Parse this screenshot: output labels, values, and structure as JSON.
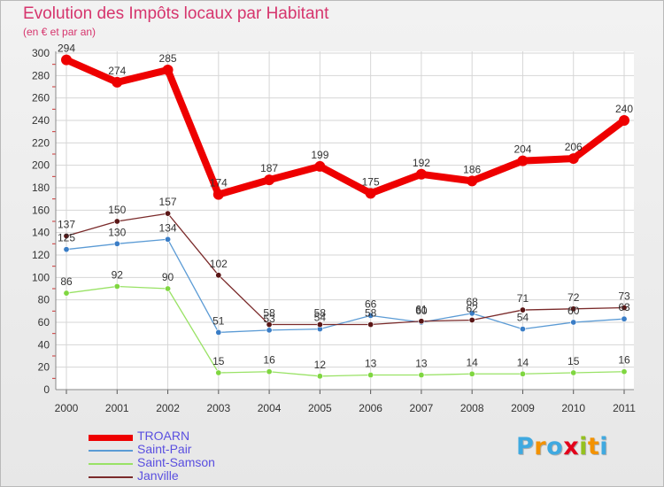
{
  "header": {
    "title": "Evolution des Impôts locaux par Habitant",
    "subtitle": "(en € et par an)"
  },
  "brand": {
    "text": "Proxiti",
    "letters": [
      "P",
      "r",
      "o",
      "x",
      "i",
      "t",
      "i"
    ],
    "colors": [
      "#3fa9e0",
      "#f39200",
      "#3fa9e0",
      "#e3001b",
      "#95c11f",
      "#f39200",
      "#3fa9e0"
    ]
  },
  "chart_data": {
    "type": "line",
    "title": "Evolution des Impôts locaux par Habitant",
    "subtitle": "(en € et par an)",
    "xlabel": "",
    "ylabel": "",
    "ylim": [
      0,
      300
    ],
    "yticks": [
      0,
      20,
      40,
      60,
      80,
      100,
      120,
      140,
      160,
      180,
      200,
      220,
      240,
      260,
      280,
      300
    ],
    "grid": true,
    "legend_position": "bottom-left",
    "categories": [
      "2000",
      "2001",
      "2002",
      "2003",
      "2004",
      "2005",
      "2006",
      "2007",
      "2008",
      "2009",
      "2010",
      "2011"
    ],
    "series": [
      {
        "name": "TROARN",
        "color": "#ee0000",
        "values": [
          294,
          274,
          285,
          174,
          187,
          199,
          175,
          192,
          186,
          204,
          206,
          240
        ],
        "labels": [
          "294",
          "274",
          "285",
          "174",
          "187",
          "199",
          "175",
          "192",
          "186",
          "204",
          "206",
          "240"
        ]
      },
      {
        "name": "Saint-Pair",
        "color": "#5b9bd5",
        "marker_color": "#3a7dc6",
        "values": [
          125,
          130,
          134,
          51,
          53,
          54,
          66,
          60,
          68,
          54,
          60,
          63
        ],
        "labels": [
          "125",
          "130",
          "134",
          "51",
          "53",
          "54",
          "66",
          "60",
          "68",
          "54",
          "60",
          "63"
        ]
      },
      {
        "name": "Saint-Samson",
        "color": "#99e265",
        "marker_color": "#7fd640",
        "values": [
          86,
          92,
          90,
          15,
          16,
          12,
          13,
          13,
          14,
          14,
          15,
          16
        ],
        "labels": [
          "86",
          "92",
          "90",
          "15",
          "16",
          "12",
          "13",
          "13",
          "14",
          "14",
          "15",
          "16"
        ]
      },
      {
        "name": "Janville",
        "color": "#7a2a2a",
        "marker_color": "#5a1616",
        "values": [
          137,
          150,
          157,
          102,
          58,
          58,
          58,
          61,
          62,
          71,
          72,
          73
        ],
        "labels": [
          "137",
          "150",
          "157",
          "102",
          "58",
          "58",
          "58",
          "61",
          "62",
          "71",
          "72",
          "73"
        ]
      }
    ]
  }
}
